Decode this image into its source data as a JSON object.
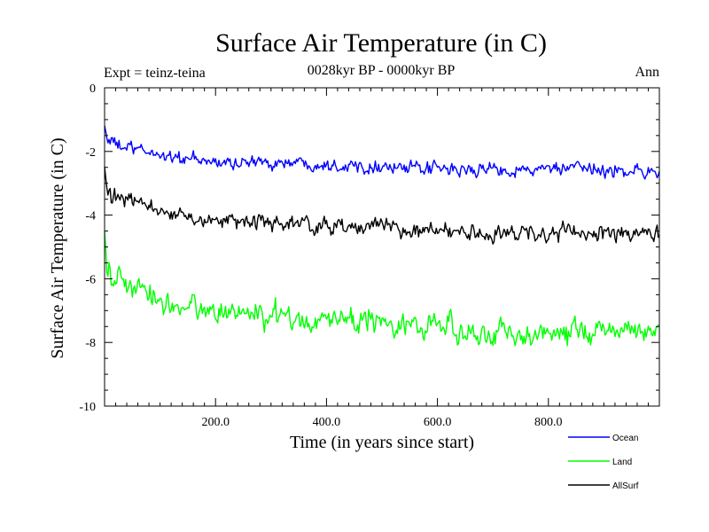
{
  "chart_data": {
    "type": "line",
    "title": "Surface Air Temperature (in C)",
    "subtitle": "0028kyr BP - 0000kyr BP",
    "left_annotation": "Expt = teinz-teina",
    "right_annotation": "Ann",
    "xlabel": "Time (in years since start)",
    "ylabel": "Surface Air Temperature (in C)",
    "xlim": [
      0,
      1000
    ],
    "ylim": [
      -10,
      0
    ],
    "x_ticks": [
      200,
      400,
      600,
      800
    ],
    "x_tick_labels": [
      "200.0",
      "400.0",
      "600.0",
      "800.0"
    ],
    "y_ticks": [
      0,
      -2,
      -4,
      -6,
      -8,
      -10
    ],
    "y_tick_labels": [
      "0",
      "-2",
      "-4",
      "-6",
      "-8",
      "-10"
    ],
    "grid": false,
    "legend_position": "bottom-right",
    "series": [
      {
        "name": "Ocean",
        "color": "#0000ff",
        "x": [
          0,
          5,
          15,
          30,
          60,
          100,
          150,
          200,
          250,
          300,
          350,
          400,
          450,
          500,
          550,
          600,
          650,
          700,
          750,
          800,
          850,
          900,
          950,
          1000
        ],
        "values": [
          -1.2,
          -1.6,
          -1.75,
          -1.85,
          -1.95,
          -2.1,
          -2.25,
          -2.35,
          -2.35,
          -2.35,
          -2.35,
          -2.4,
          -2.45,
          -2.45,
          -2.55,
          -2.55,
          -2.6,
          -2.55,
          -2.6,
          -2.55,
          -2.55,
          -2.6,
          -2.6,
          -2.65
        ],
        "noise_amplitude": 0.15
      },
      {
        "name": "Land",
        "color": "#00ff00",
        "x": [
          0,
          5,
          15,
          30,
          60,
          100,
          150,
          200,
          250,
          300,
          350,
          400,
          450,
          500,
          550,
          600,
          650,
          700,
          750,
          800,
          850,
          900,
          950,
          1000
        ],
        "values": [
          -4.5,
          -5.8,
          -6.0,
          -6.1,
          -6.35,
          -6.7,
          -6.9,
          -7.0,
          -7.1,
          -7.2,
          -7.25,
          -7.3,
          -7.3,
          -7.3,
          -7.45,
          -7.5,
          -7.65,
          -7.7,
          -7.75,
          -7.7,
          -7.65,
          -7.65,
          -7.6,
          -7.55
        ],
        "noise_amplitude": 0.28
      },
      {
        "name": "AllSurf",
        "color": "#000000",
        "x": [
          0,
          5,
          15,
          30,
          60,
          100,
          150,
          200,
          250,
          300,
          350,
          400,
          450,
          500,
          550,
          600,
          650,
          700,
          750,
          800,
          850,
          900,
          950,
          1000
        ],
        "values": [
          -2.5,
          -3.3,
          -3.45,
          -3.5,
          -3.65,
          -3.85,
          -4.05,
          -4.15,
          -4.2,
          -4.25,
          -4.3,
          -4.35,
          -4.35,
          -4.35,
          -4.45,
          -4.5,
          -4.55,
          -4.6,
          -4.6,
          -4.55,
          -4.55,
          -4.6,
          -4.55,
          -4.55
        ],
        "noise_amplitude": 0.18
      }
    ]
  }
}
